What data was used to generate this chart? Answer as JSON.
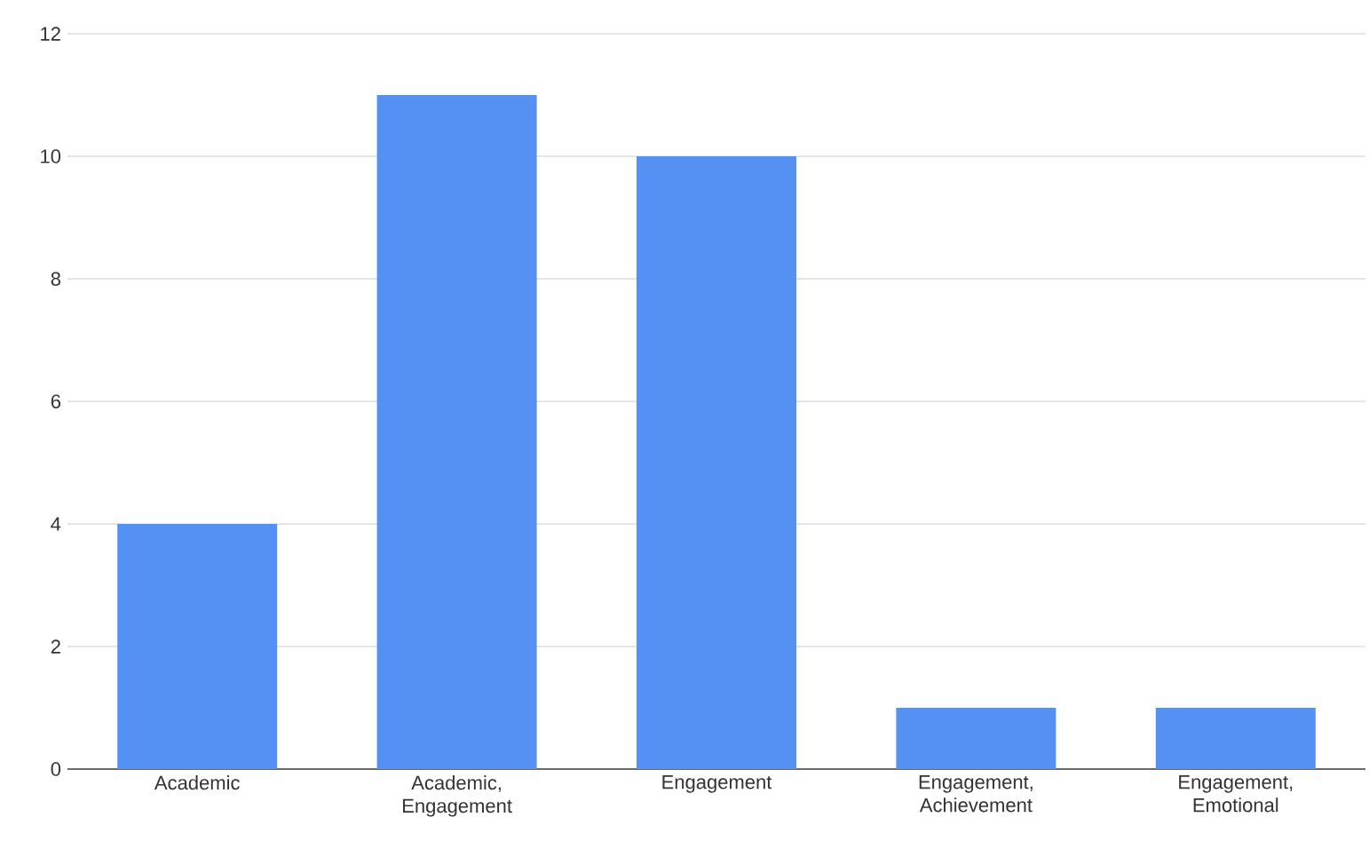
{
  "chart_data": {
    "type": "bar",
    "categories": [
      "Academic",
      "Academic, Engagement",
      "Engagement",
      "Engagement, Achievement",
      "Engagement, Emotional"
    ],
    "values": [
      4,
      11,
      10,
      1,
      1
    ],
    "color": "#5591f3",
    "ylim": [
      0,
      12
    ],
    "yticks": [
      0,
      2,
      4,
      6,
      8,
      10,
      12
    ],
    "grid": "y"
  }
}
